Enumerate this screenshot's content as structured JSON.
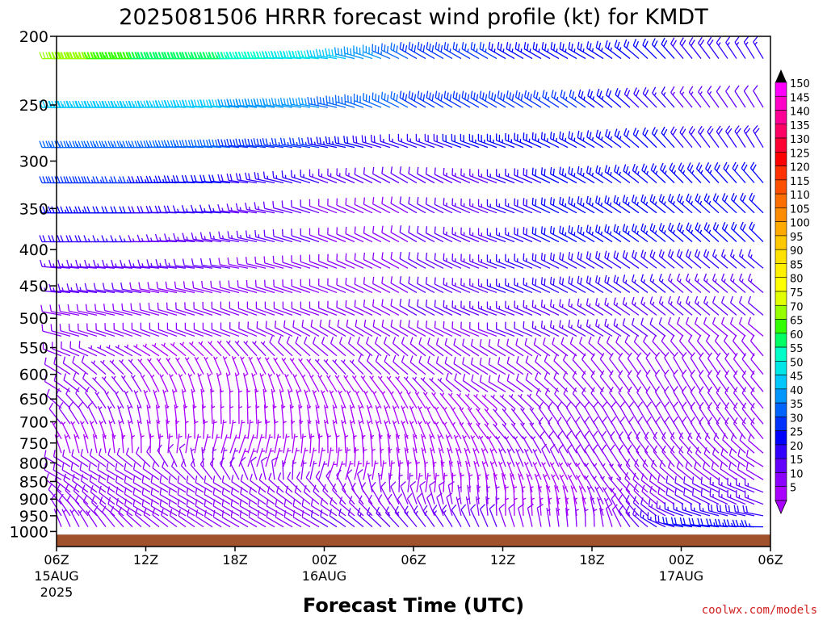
{
  "chart_data": {
    "type": "wind-barb-timeseries",
    "title": "2025081506 HRRR forecast wind profile (kt) for KMDT",
    "xlabel": "Forecast Time (UTC)",
    "ylabel": "",
    "watermark": "coolwx.com/models",
    "x_ticks": [
      {
        "label": "06Z",
        "sub": "15AUG",
        "sub2": "2025",
        "hour": 0
      },
      {
        "label": "12Z",
        "sub": "",
        "sub2": "",
        "hour": 6
      },
      {
        "label": "18Z",
        "sub": "",
        "sub2": "",
        "hour": 12
      },
      {
        "label": "00Z",
        "sub": "16AUG",
        "sub2": "",
        "hour": 18
      },
      {
        "label": "06Z",
        "sub": "",
        "sub2": "",
        "hour": 24
      },
      {
        "label": "12Z",
        "sub": "",
        "sub2": "",
        "hour": 30
      },
      {
        "label": "18Z",
        "sub": "",
        "sub2": "",
        "hour": 36
      },
      {
        "label": "00Z",
        "sub": "17AUG",
        "sub2": "",
        "hour": 42
      },
      {
        "label": "06Z",
        "sub": "",
        "sub2": "",
        "hour": 48
      }
    ],
    "xlim": [
      0,
      48
    ],
    "y_ticks": [
      200,
      250,
      300,
      350,
      400,
      450,
      500,
      550,
      600,
      650,
      700,
      750,
      800,
      850,
      900,
      950,
      1000
    ],
    "ylim": [
      200,
      1050
    ],
    "y_scale": "log-pressure",
    "legend": {
      "placement": "right",
      "labels": [
        "150",
        "145",
        "140",
        "135",
        "130",
        "125",
        "120",
        "115",
        "110",
        "105",
        "100",
        "95",
        "90",
        "85",
        "80",
        "75",
        "70",
        "65",
        "60",
        "55",
        "50",
        "45",
        "40",
        "35",
        "30",
        "25",
        "20",
        "15",
        "10",
        "5"
      ],
      "colors": [
        "#ff00ff",
        "#ff00c8",
        "#ff0096",
        "#ff0064",
        "#ff0032",
        "#ff0000",
        "#ff3200",
        "#ff5000",
        "#ff6e00",
        "#ff8c00",
        "#ffaa00",
        "#ffc800",
        "#ffe100",
        "#fff000",
        "#ffff00",
        "#e1ff00",
        "#96ff00",
        "#32ff00",
        "#00ff64",
        "#00ffc8",
        "#00e6e6",
        "#00c8ff",
        "#0096ff",
        "#0064ff",
        "#0032ff",
        "#0000ff",
        "#3200ff",
        "#6400ff",
        "#8c00ff",
        "#aa00ff"
      ]
    },
    "ground": {
      "color": "#a0522d",
      "pressure_top": 1010
    },
    "levels_hpa": [
      215,
      252,
      287,
      322,
      355,
      390,
      425,
      460,
      495,
      530,
      565,
      600,
      635,
      670,
      705,
      740,
      775,
      810,
      845,
      880,
      915,
      950,
      985
    ],
    "hours": [
      0,
      6,
      12,
      18,
      24,
      30,
      36,
      42,
      48
    ],
    "series": [
      {
        "level": 215,
        "speed": [
          70,
          60,
          55,
          45,
          30,
          25,
          25,
          20,
          15
        ],
        "dir": [
          270,
          270,
          270,
          275,
          300,
          300,
          300,
          320,
          330
        ]
      },
      {
        "level": 252,
        "speed": [
          45,
          45,
          40,
          35,
          30,
          30,
          25,
          15,
          10
        ],
        "dir": [
          270,
          270,
          275,
          280,
          300,
          300,
          305,
          320,
          330
        ]
      },
      {
        "level": 287,
        "speed": [
          35,
          35,
          30,
          25,
          15,
          25,
          25,
          20,
          20
        ],
        "dir": [
          270,
          270,
          275,
          280,
          290,
          290,
          300,
          320,
          330
        ]
      },
      {
        "level": 322,
        "speed": [
          30,
          25,
          20,
          15,
          10,
          15,
          25,
          25,
          20
        ],
        "dir": [
          270,
          270,
          275,
          290,
          300,
          290,
          300,
          315,
          320
        ]
      },
      {
        "level": 355,
        "speed": [
          25,
          20,
          15,
          10,
          10,
          15,
          25,
          25,
          20
        ],
        "dir": [
          270,
          270,
          275,
          290,
          300,
          290,
          300,
          310,
          315
        ]
      },
      {
        "level": 390,
        "speed": [
          20,
          15,
          15,
          10,
          10,
          15,
          25,
          25,
          20
        ],
        "dir": [
          270,
          270,
          280,
          290,
          300,
          290,
          300,
          310,
          315
        ]
      },
      {
        "level": 425,
        "speed": [
          15,
          15,
          10,
          10,
          10,
          15,
          20,
          20,
          15
        ],
        "dir": [
          275,
          275,
          280,
          290,
          300,
          290,
          300,
          310,
          310
        ]
      },
      {
        "level": 460,
        "speed": [
          15,
          10,
          10,
          10,
          10,
          15,
          20,
          15,
          15
        ],
        "dir": [
          275,
          280,
          285,
          290,
          300,
          290,
          300,
          310,
          310
        ]
      },
      {
        "level": 495,
        "speed": [
          10,
          10,
          10,
          10,
          10,
          15,
          15,
          15,
          10
        ],
        "dir": [
          280,
          285,
          290,
          290,
          300,
          290,
          300,
          310,
          310
        ]
      },
      {
        "level": 530,
        "speed": [
          10,
          10,
          10,
          10,
          10,
          10,
          15,
          10,
          10
        ],
        "dir": [
          285,
          290,
          290,
          300,
          300,
          290,
          300,
          310,
          310
        ]
      },
      {
        "level": 565,
        "speed": [
          10,
          5,
          5,
          10,
          10,
          10,
          10,
          10,
          10
        ],
        "dir": [
          290,
          300,
          320,
          310,
          310,
          300,
          310,
          320,
          320
        ]
      },
      {
        "level": 600,
        "speed": [
          10,
          5,
          5,
          5,
          10,
          10,
          10,
          10,
          10
        ],
        "dir": [
          300,
          320,
          340,
          320,
          310,
          300,
          320,
          330,
          320
        ]
      },
      {
        "level": 635,
        "speed": [
          10,
          5,
          5,
          5,
          5,
          10,
          10,
          10,
          10
        ],
        "dir": [
          300,
          330,
          350,
          330,
          320,
          300,
          320,
          330,
          320
        ]
      },
      {
        "level": 670,
        "speed": [
          10,
          5,
          5,
          5,
          5,
          5,
          10,
          10,
          10
        ],
        "dir": [
          310,
          340,
          360,
          340,
          330,
          310,
          320,
          330,
          320
        ]
      },
      {
        "level": 705,
        "speed": [
          10,
          5,
          5,
          5,
          5,
          5,
          10,
          10,
          10
        ],
        "dir": [
          320,
          350,
          360,
          350,
          340,
          320,
          330,
          330,
          320
        ]
      },
      {
        "level": 740,
        "speed": [
          5,
          5,
          5,
          5,
          5,
          5,
          10,
          10,
          10
        ],
        "dir": [
          330,
          350,
          10,
          350,
          340,
          320,
          330,
          330,
          320
        ]
      },
      {
        "level": 775,
        "speed": [
          5,
          5,
          5,
          5,
          5,
          5,
          10,
          10,
          10
        ],
        "dir": [
          340,
          360,
          20,
          360,
          350,
          330,
          330,
          320,
          310
        ]
      },
      {
        "level": 810,
        "speed": [
          10,
          10,
          5,
          5,
          5,
          5,
          10,
          10,
          10
        ],
        "dir": [
          300,
          310,
          20,
          10,
          350,
          340,
          330,
          320,
          300
        ]
      },
      {
        "level": 845,
        "speed": [
          10,
          10,
          10,
          5,
          5,
          5,
          5,
          10,
          10
        ],
        "dir": [
          300,
          300,
          330,
          20,
          360,
          340,
          330,
          310,
          300
        ]
      },
      {
        "level": 880,
        "speed": [
          10,
          10,
          10,
          10,
          5,
          5,
          5,
          10,
          15
        ],
        "dir": [
          310,
          300,
          300,
          320,
          10,
          350,
          330,
          300,
          290
        ]
      },
      {
        "level": 915,
        "speed": [
          10,
          10,
          10,
          10,
          10,
          5,
          5,
          10,
          15
        ],
        "dir": [
          320,
          300,
          300,
          310,
          340,
          360,
          340,
          300,
          290
        ]
      },
      {
        "level": 950,
        "speed": [
          10,
          10,
          10,
          10,
          10,
          5,
          5,
          15,
          20
        ],
        "dir": [
          330,
          300,
          300,
          300,
          330,
          360,
          350,
          290,
          280
        ]
      },
      {
        "level": 985,
        "speed": [
          5,
          10,
          10,
          10,
          15,
          10,
          5,
          20,
          25
        ],
        "dir": [
          340,
          310,
          300,
          300,
          320,
          340,
          360,
          280,
          270
        ]
      }
    ]
  }
}
